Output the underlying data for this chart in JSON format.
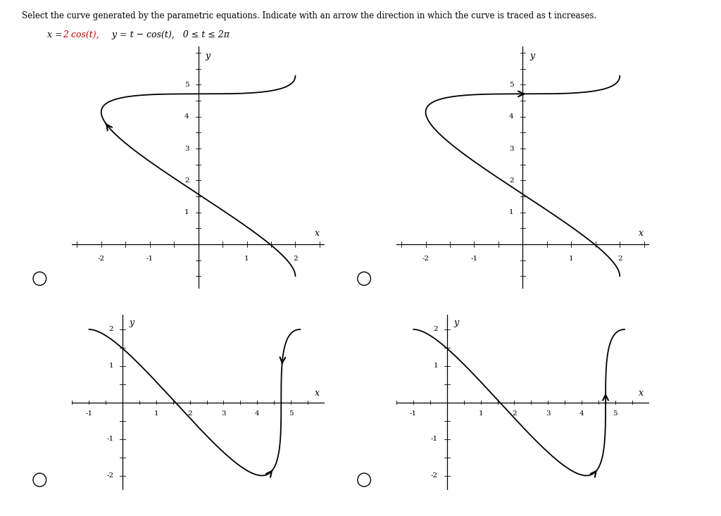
{
  "title_text": "Select the curve generated by the parametric equations. Indicate with an arrow the direction in which the curve is traced as t increases.",
  "bg_color": "#ffffff",
  "text_color": "#000000",
  "red_color": "#cc0000",
  "plots": [
    {
      "id": "A",
      "type": "top",
      "xlim": [
        -2.6,
        2.6
      ],
      "ylim": [
        -1.4,
        6.2
      ],
      "xticks": [
        -2,
        -1,
        1,
        2
      ],
      "yticks": [
        1,
        2,
        3,
        4,
        5
      ],
      "arrow_t": 2.8,
      "arrow_dir": 1,
      "circle": true,
      "row": 0,
      "col": 0
    },
    {
      "id": "B",
      "type": "top",
      "xlim": [
        -2.6,
        2.6
      ],
      "ylim": [
        -1.4,
        6.2
      ],
      "xticks": [
        -2,
        -1,
        1,
        2
      ],
      "yticks": [
        1,
        2,
        3,
        4,
        5
      ],
      "arrow_t": 4.7,
      "arrow_dir": 1,
      "circle": true,
      "row": 0,
      "col": 1
    },
    {
      "id": "C",
      "type": "bottom",
      "xlim": [
        -1.5,
        6.0
      ],
      "ylim": [
        -2.4,
        2.4
      ],
      "xticks": [
        -1,
        1,
        2,
        3,
        4,
        5
      ],
      "yticks": [
        -2,
        -1,
        1,
        2
      ],
      "arrow_t1": 3.5,
      "arrow_t2": 5.3,
      "arrow_dir1": 1,
      "arrow_dir2": -1,
      "circle": true,
      "row": 1,
      "col": 0
    },
    {
      "id": "D",
      "type": "bottom",
      "xlim": [
        -1.5,
        6.0
      ],
      "ylim": [
        -2.4,
        2.4
      ],
      "xticks": [
        -1,
        1,
        2,
        3,
        4,
        5
      ],
      "yticks": [
        -2,
        -1,
        1,
        2
      ],
      "arrow_t1": 3.5,
      "arrow_t2": 4.8,
      "arrow_dir1": 1,
      "arrow_dir2": 1,
      "circle": true,
      "row": 1,
      "col": 1
    }
  ]
}
